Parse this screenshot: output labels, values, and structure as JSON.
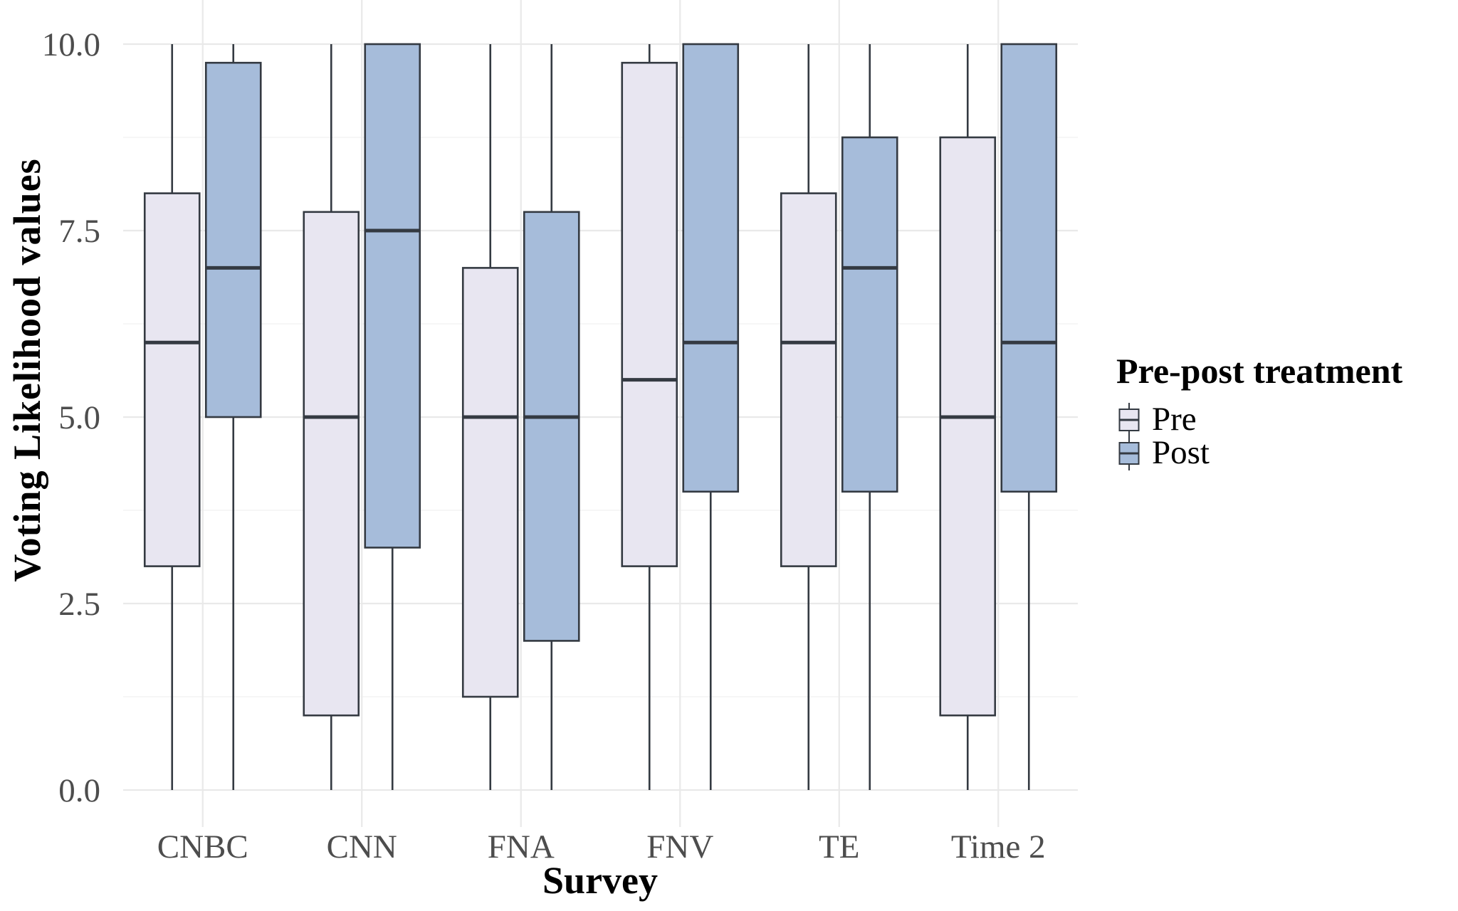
{
  "figure": {
    "background": "#ffffff"
  },
  "axes": {
    "y_title": "Voting Likelihood values",
    "x_title": "Survey",
    "y_ticks": [
      {
        "value": 0,
        "label": "0.0"
      },
      {
        "value": 2.5,
        "label": "2.5"
      },
      {
        "value": 5,
        "label": "5.0"
      },
      {
        "value": 7.5,
        "label": "7.5"
      },
      {
        "value": 10,
        "label": "10.0"
      }
    ],
    "y_minor": [
      1.25,
      3.75,
      6.25,
      8.75
    ]
  },
  "legend": {
    "title": "Pre-post treatment",
    "items": [
      {
        "label": "Pre",
        "fill": "#e8e6f1"
      },
      {
        "label": "Post",
        "fill": "#a6bcda"
      }
    ]
  },
  "colors": {
    "box_stroke": "#343a42",
    "major_grid": "#e9e9e9",
    "minor_grid": "#f4f4f4",
    "tick_label": "#4d4d4d",
    "pre_fill": "#e8e6f1",
    "post_fill": "#a6bcda"
  },
  "chart_data": {
    "type": "boxplot",
    "title": "",
    "xlabel": "Survey",
    "ylabel": "Voting Likelihood values",
    "ylim": [
      0,
      10
    ],
    "grid": "horizontal major+minor, vertical major at category centers",
    "legend_position": "right",
    "categories": [
      "CNBC",
      "CNN",
      "FNA",
      "FNV",
      "TE",
      "Time 2"
    ],
    "series": [
      {
        "name": "Pre",
        "fill": "#e8e6f1",
        "boxes": [
          {
            "category": "CNBC",
            "whisker_low": 0,
            "q1": 3,
            "median": 6,
            "q3": 8,
            "whisker_high": 10
          },
          {
            "category": "CNN",
            "whisker_low": 0,
            "q1": 1,
            "median": 5,
            "q3": 7.75,
            "whisker_high": 10
          },
          {
            "category": "FNA",
            "whisker_low": 0,
            "q1": 1.25,
            "median": 5,
            "q3": 7,
            "whisker_high": 10
          },
          {
            "category": "FNV",
            "whisker_low": 0,
            "q1": 3,
            "median": 5.5,
            "q3": 9.75,
            "whisker_high": 10
          },
          {
            "category": "TE",
            "whisker_low": 0,
            "q1": 3,
            "median": 6,
            "q3": 8,
            "whisker_high": 10
          },
          {
            "category": "Time 2",
            "whisker_low": 0,
            "q1": 1,
            "median": 5,
            "q3": 8.75,
            "whisker_high": 10
          }
        ]
      },
      {
        "name": "Post",
        "fill": "#a6bcda",
        "boxes": [
          {
            "category": "CNBC",
            "whisker_low": 0,
            "q1": 5,
            "median": 7,
            "q3": 9.75,
            "whisker_high": 10
          },
          {
            "category": "CNN",
            "whisker_low": 0,
            "q1": 3.25,
            "median": 7.5,
            "q3": 10,
            "whisker_high": 10
          },
          {
            "category": "FNA",
            "whisker_low": 0,
            "q1": 2,
            "median": 5,
            "q3": 7.75,
            "whisker_high": 10
          },
          {
            "category": "FNV",
            "whisker_low": 0,
            "q1": 4,
            "median": 6,
            "q3": 10,
            "whisker_high": 10
          },
          {
            "category": "TE",
            "whisker_low": 0,
            "q1": 4,
            "median": 7,
            "q3": 8.75,
            "whisker_high": 10
          },
          {
            "category": "Time 2",
            "whisker_low": 0,
            "q1": 4,
            "median": 6,
            "q3": 10,
            "whisker_high": 10
          }
        ]
      }
    ]
  }
}
